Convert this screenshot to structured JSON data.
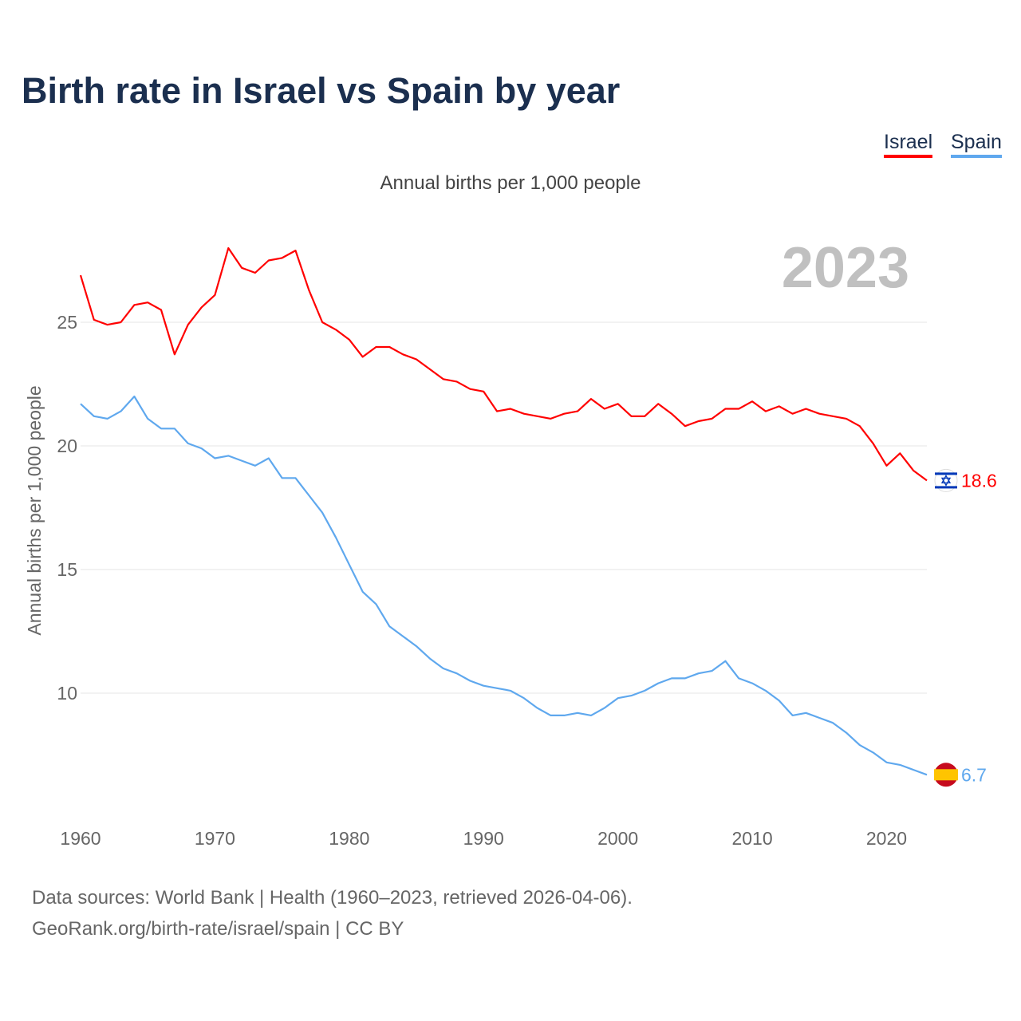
{
  "title": "Birth rate in Israel vs Spain by year",
  "subtitle": "Annual births per 1,000 people",
  "year_watermark": "2023",
  "legend": [
    {
      "label": "Israel",
      "color": "#ff0000"
    },
    {
      "label": "Spain",
      "color": "#5fa8ee"
    }
  ],
  "footer": {
    "line1": "Data sources: World Bank | Health (1960–2023, retrieved 2026-04-06).",
    "line2": "GeoRank.org/birth-rate/israel/spain | CC BY"
  },
  "chart_data": {
    "type": "line",
    "title": "Birth rate in Israel vs Spain by year",
    "xlabel": "",
    "ylabel": "Annual births per 1,000 people",
    "xlim": [
      1960,
      2023
    ],
    "ylim": [
      6,
      29
    ],
    "x_ticks": [
      1960,
      1970,
      1980,
      1990,
      2000,
      2010,
      2020
    ],
    "y_ticks": [
      10,
      15,
      20,
      25
    ],
    "grid": true,
    "x": [
      1960,
      1961,
      1962,
      1963,
      1964,
      1965,
      1966,
      1967,
      1968,
      1969,
      1970,
      1971,
      1972,
      1973,
      1974,
      1975,
      1976,
      1977,
      1978,
      1979,
      1980,
      1981,
      1982,
      1983,
      1984,
      1985,
      1986,
      1987,
      1988,
      1989,
      1990,
      1991,
      1992,
      1993,
      1994,
      1995,
      1996,
      1997,
      1998,
      1999,
      2000,
      2001,
      2002,
      2003,
      2004,
      2005,
      2006,
      2007,
      2008,
      2009,
      2010,
      2011,
      2012,
      2013,
      2014,
      2015,
      2016,
      2017,
      2018,
      2019,
      2020,
      2021,
      2022,
      2023
    ],
    "series": [
      {
        "name": "Israel",
        "color": "#ff0000",
        "end_label": "18.6",
        "values": [
          26.9,
          25.1,
          24.9,
          25.0,
          25.7,
          25.8,
          25.5,
          23.7,
          24.9,
          25.6,
          26.1,
          28.0,
          27.2,
          27.0,
          27.5,
          27.6,
          27.9,
          26.3,
          25.0,
          24.7,
          24.3,
          23.6,
          24.0,
          24.0,
          23.7,
          23.5,
          23.1,
          22.7,
          22.6,
          22.3,
          22.2,
          21.4,
          21.5,
          21.3,
          21.2,
          21.1,
          21.3,
          21.4,
          21.9,
          21.5,
          21.7,
          21.2,
          21.2,
          21.7,
          21.3,
          20.8,
          21.0,
          21.1,
          21.5,
          21.5,
          21.8,
          21.4,
          21.6,
          21.3,
          21.5,
          21.3,
          21.2,
          21.1,
          20.8,
          20.1,
          19.2,
          19.7,
          19.0,
          18.6
        ]
      },
      {
        "name": "Spain",
        "color": "#5fa8ee",
        "end_label": "6.7",
        "values": [
          21.7,
          21.2,
          21.1,
          21.4,
          22.0,
          21.1,
          20.7,
          20.7,
          20.1,
          19.9,
          19.5,
          19.6,
          19.4,
          19.2,
          19.5,
          18.7,
          18.7,
          18.0,
          17.3,
          16.3,
          15.2,
          14.1,
          13.6,
          12.7,
          12.3,
          11.9,
          11.4,
          11.0,
          10.8,
          10.5,
          10.3,
          10.2,
          10.1,
          9.8,
          9.4,
          9.1,
          9.1,
          9.2,
          9.1,
          9.4,
          9.8,
          9.9,
          10.1,
          10.4,
          10.6,
          10.6,
          10.8,
          10.9,
          11.3,
          10.6,
          10.4,
          10.1,
          9.7,
          9.1,
          9.2,
          9.0,
          8.8,
          8.4,
          7.9,
          7.6,
          7.2,
          7.1,
          6.9,
          6.7
        ]
      }
    ]
  }
}
